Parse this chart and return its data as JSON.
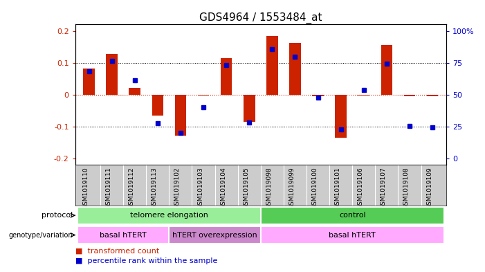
{
  "title": "GDS4964 / 1553484_at",
  "samples": [
    "GSM1019110",
    "GSM1019111",
    "GSM1019112",
    "GSM1019113",
    "GSM1019102",
    "GSM1019103",
    "GSM1019104",
    "GSM1019105",
    "GSM1019098",
    "GSM1019099",
    "GSM1019100",
    "GSM1019101",
    "GSM1019106",
    "GSM1019107",
    "GSM1019108",
    "GSM1019109"
  ],
  "bar_values": [
    0.082,
    0.128,
    0.022,
    -0.065,
    -0.128,
    -0.002,
    0.115,
    -0.085,
    0.185,
    0.163,
    -0.005,
    -0.135,
    -0.002,
    0.155,
    -0.005,
    -0.005
  ],
  "dot_values": [
    0.073,
    0.105,
    0.045,
    -0.09,
    -0.12,
    -0.04,
    0.093,
    -0.088,
    0.143,
    0.118,
    -0.01,
    -0.108,
    0.015,
    0.098,
    -0.098,
    -0.102
  ],
  "bar_color": "#cc2200",
  "dot_color": "#0000cc",
  "ylim": [
    -0.22,
    0.22
  ],
  "yticks": [
    -0.2,
    -0.1,
    0.0,
    0.1,
    0.2
  ],
  "ytick_labels_left": [
    "-0.2",
    "-0.1",
    "0",
    "0.1",
    "0.2"
  ],
  "ytick_labels_right": [
    "0",
    "25",
    "50",
    "75",
    "100%"
  ],
  "hline_color": "#cc2200",
  "dotted_color": "black",
  "protocol_labels": [
    {
      "label": "telomere elongation",
      "start": 0,
      "end": 7,
      "color": "#99ee99"
    },
    {
      "label": "control",
      "start": 8,
      "end": 15,
      "color": "#55cc55"
    }
  ],
  "genotype_labels": [
    {
      "label": "basal hTERT",
      "start": 0,
      "end": 3,
      "color": "#ffaaff"
    },
    {
      "label": "hTERT overexpression",
      "start": 4,
      "end": 7,
      "color": "#cc88cc"
    },
    {
      "label": "basal hTERT",
      "start": 8,
      "end": 15,
      "color": "#ffaaff"
    }
  ],
  "bar_width": 0.5,
  "background_color": "#ffffff",
  "plot_bg_color": "#ffffff",
  "tick_label_color_left": "#cc2200",
  "tick_label_color_right": "#0000cc",
  "sample_bg_color": "#cccccc"
}
